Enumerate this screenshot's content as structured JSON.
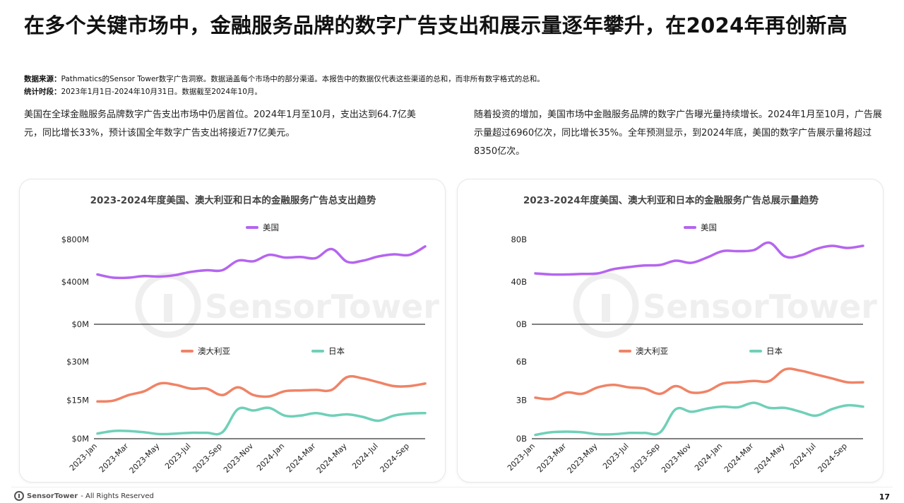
{
  "page": {
    "title": "在多个关键市场中，金融服务品牌的数字广告支出和展示量逐年攀升，在2024年再创新高",
    "source_label": "数据来源：",
    "source_text": "Pathmatics的Sensor Tower数字广告洞察。数据涵盖每个市场中的部分渠道。本报告中的数据仅代表这些渠道的总和，而非所有数字格式的总和。",
    "period_label": "统计时段：",
    "period_text": "2023年1月1日-2024年10月31日。数据截至2024年10月。",
    "left_paragraph": "美国在全球金融服务品牌数字广告支出市场中仍居首位。2024年1月至10月，支出达到64.7亿美元，同比增长33%，预计该国全年数字广告支出将接近77亿美元。",
    "right_paragraph": "随着投资的增加，美国市场中金融服务品牌的数字广告曝光量持续增长。2024年1月至10月，广告展示量超过6960亿次，同比增长35%。全年预测显示，到2024年底，美国的数字广告展示量将超过8350亿次。",
    "footer_brand": "SensorTower",
    "footer_text": "- All Rights Reserved",
    "page_number": "17",
    "watermark": "SensorTower"
  },
  "colors": {
    "us": "#b565f0",
    "au": "#f08366",
    "jp": "#6fd0b8",
    "axis": "#333333",
    "title": "#444444"
  },
  "chart_data": [
    {
      "type": "line",
      "title": "2023-2024年度美国、澳大利亚和日本的金融服务广告总支出趋势",
      "x": [
        "2023-Jan",
        "2023-Feb",
        "2023-Mar",
        "2023-Apr",
        "2023-May",
        "2023-Jun",
        "2023-Jul",
        "2023-Aug",
        "2023-Sep",
        "2023-Oct",
        "2023-Nov",
        "2023-Dec",
        "2024-Jan",
        "2024-Feb",
        "2024-Mar",
        "2024-Apr",
        "2024-May",
        "2024-Jun",
        "2024-Jul",
        "2024-Aug",
        "2024-Sep",
        "2024-Oct"
      ],
      "x_tick_labels": [
        "2023-Jan",
        "2023-Mar",
        "2023-May",
        "2023-Jul",
        "2023-Sep",
        "2023-Nov",
        "2024-Jan",
        "2024-Mar",
        "2024-May",
        "2024-Jul",
        "2024-Sep"
      ],
      "top_panel": {
        "yticks": [
          "$800M",
          "$400M",
          "$0M"
        ],
        "ylim": [
          0,
          800
        ],
        "series": [
          {
            "name": "美国",
            "values": [
              470,
              440,
              440,
              455,
              450,
              465,
              495,
              510,
              510,
              600,
              595,
              655,
              630,
              635,
              625,
              710,
              590,
              600,
              640,
              660,
              655,
              735
            ]
          }
        ]
      },
      "bottom_panel": {
        "yticks": [
          "$30M",
          "$15M",
          "$0M"
        ],
        "ylim": [
          0,
          30
        ],
        "series": [
          {
            "name": "澳大利亚",
            "values": [
              14.5,
              14.8,
              17.0,
              18.5,
              21.5,
              21.0,
              19.5,
              19.5,
              17.0,
              20.0,
              17.0,
              16.5,
              18.5,
              18.8,
              19.0,
              19.0,
              24.0,
              23.5,
              22.0,
              20.5,
              20.5,
              21.5
            ]
          },
          {
            "name": "日本",
            "values": [
              2.0,
              3.0,
              3.0,
              2.5,
              1.8,
              2.0,
              2.3,
              2.3,
              2.5,
              11.5,
              11.0,
              12.0,
              9.0,
              9.0,
              10.0,
              9.0,
              9.5,
              8.5,
              7.0,
              9.0,
              9.8,
              10.0
            ]
          }
        ]
      }
    },
    {
      "type": "line",
      "title": "2023-2024年度美国、澳大利亚和日本的金融服务广告总展示量趋势",
      "x": [
        "2023-Jan",
        "2023-Feb",
        "2023-Mar",
        "2023-Apr",
        "2023-May",
        "2023-Jun",
        "2023-Jul",
        "2023-Aug",
        "2023-Sep",
        "2023-Oct",
        "2023-Nov",
        "2023-Dec",
        "2024-Jan",
        "2024-Feb",
        "2024-Mar",
        "2024-Apr",
        "2024-May",
        "2024-Jun",
        "2024-Jul",
        "2024-Aug",
        "2024-Sep",
        "2024-Oct"
      ],
      "x_tick_labels": [
        "2023-Jan",
        "2023-Mar",
        "2023-May",
        "2023-Jul",
        "2023-Sep",
        "2023-Nov",
        "2024-Jan",
        "2024-Mar",
        "2024-May",
        "2024-Jul",
        "2024-Sep"
      ],
      "top_panel": {
        "yticks": [
          "80B",
          "40B",
          "0B"
        ],
        "ylim": [
          0,
          80
        ],
        "series": [
          {
            "name": "美国",
            "values": [
              48,
              47,
              47,
              47.5,
              48,
              52,
              54,
              55.5,
              56,
              60,
              58,
              63,
              69,
              69,
              70,
              77,
              64,
              65,
              71,
              74,
              72,
              74
            ]
          }
        ]
      },
      "bottom_panel": {
        "yticks": [
          "6B",
          "3B",
          "0B"
        ],
        "ylim": [
          0,
          6
        ],
        "series": [
          {
            "name": "澳大利亚",
            "values": [
              3.2,
              3.1,
              3.6,
              3.5,
              4.0,
              4.2,
              4.0,
              3.9,
              3.5,
              4.1,
              3.6,
              3.7,
              4.3,
              4.4,
              4.5,
              4.5,
              5.4,
              5.3,
              5.0,
              4.7,
              4.4,
              4.4
            ]
          },
          {
            "name": "日本",
            "values": [
              0.3,
              0.5,
              0.55,
              0.5,
              0.35,
              0.35,
              0.45,
              0.45,
              0.5,
              2.3,
              2.1,
              2.35,
              2.5,
              2.45,
              2.8,
              2.4,
              2.4,
              2.1,
              1.8,
              2.3,
              2.6,
              2.5
            ]
          }
        ]
      }
    }
  ]
}
